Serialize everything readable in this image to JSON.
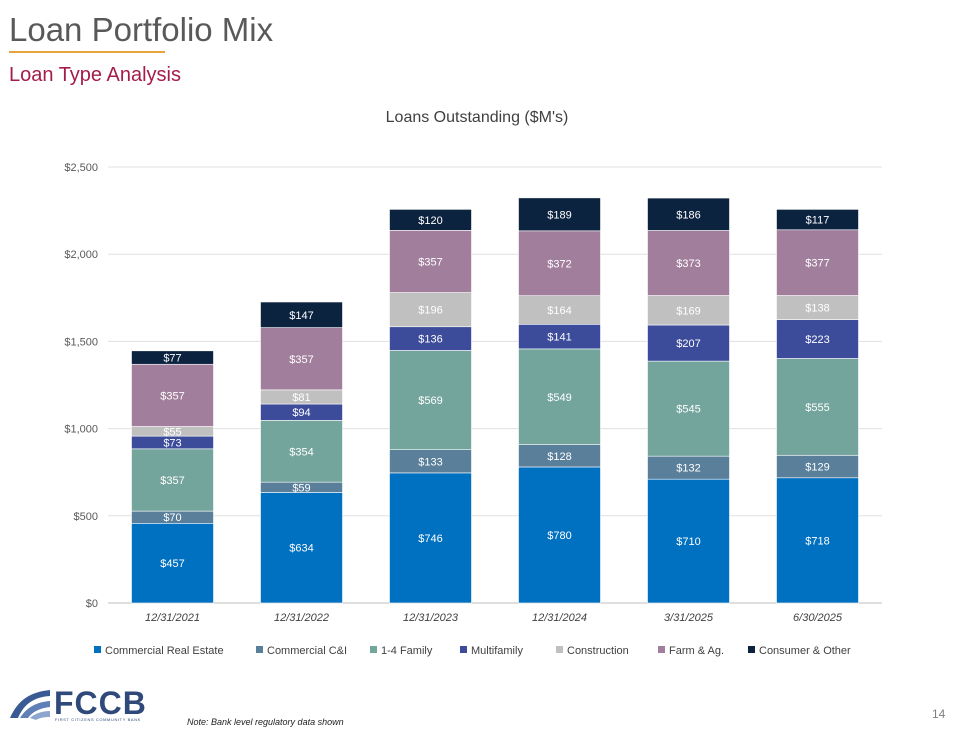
{
  "page": {
    "title": "Loan Portfolio Mix",
    "subtitle": "Loan Type Analysis",
    "note": "Note: Bank level regulatory data shown",
    "page_number": "14",
    "logo": {
      "text": "FCCB",
      "tagline": "FIRST CITIZENS COMMUNITY BANK"
    }
  },
  "chart_data": {
    "type": "bar",
    "stacked": true,
    "title": "Loans Outstanding ($M's)",
    "categories": [
      "12/31/2021",
      "12/31/2022",
      "12/31/2023",
      "12/31/2024",
      "3/31/2025",
      "6/30/2025"
    ],
    "ylim": [
      0,
      2500
    ],
    "yticks": [
      0,
      500,
      1000,
      1500,
      2000,
      2500
    ],
    "ytick_labels": [
      "$0",
      "$500",
      "$1,000",
      "$1,500",
      "$2,000",
      "$2,500"
    ],
    "grid": true,
    "legend_position": "bottom",
    "series": [
      {
        "name": "Commercial Real Estate",
        "color": "#0070c0",
        "label_color": "#ffffff",
        "values": [
          457,
          634,
          746,
          780,
          710,
          718
        ],
        "labels": [
          "$457",
          "$634",
          "$746",
          "$780",
          "$710",
          "$718"
        ]
      },
      {
        "name": "Commercial C&I",
        "color": "#5a7f9a",
        "label_color": "#ffffff",
        "values": [
          70,
          59,
          133,
          128,
          132,
          129
        ],
        "labels": [
          "$70",
          "$59",
          "$133",
          "$128",
          "$132",
          "$129"
        ]
      },
      {
        "name": "1-4 Family",
        "color": "#74a59d",
        "label_color": "#ffffff",
        "values": [
          357,
          354,
          569,
          549,
          545,
          555
        ],
        "labels": [
          "$357",
          "$354",
          "$569",
          "$549",
          "$545",
          "$555"
        ]
      },
      {
        "name": "Multifamily",
        "color": "#3c4c9b",
        "label_color": "#ffffff",
        "values": [
          73,
          94,
          136,
          141,
          207,
          223
        ],
        "labels": [
          "$73",
          "$94",
          "$136",
          "$141",
          "$207",
          "$223"
        ]
      },
      {
        "name": "Construction",
        "color": "#c0c0c0",
        "label_color": "#ffffff",
        "values": [
          55,
          81,
          196,
          164,
          169,
          138
        ],
        "labels": [
          "$55",
          "$81",
          "$196",
          "$164",
          "$169",
          "$138"
        ]
      },
      {
        "name": "Farm & Ag.",
        "color": "#a17f9c",
        "label_color": "#ffffff",
        "values": [
          357,
          357,
          357,
          372,
          373,
          377
        ],
        "labels": [
          "$357",
          "$357",
          "$357",
          "$372",
          "$373",
          "$377"
        ]
      },
      {
        "name": "Consumer & Other",
        "color": "#0c2340",
        "label_color": "#ffffff",
        "values": [
          77,
          147,
          120,
          189,
          186,
          117
        ],
        "labels": [
          "$77",
          "$147",
          "$120",
          "$189",
          "$186",
          "$117"
        ]
      }
    ]
  }
}
